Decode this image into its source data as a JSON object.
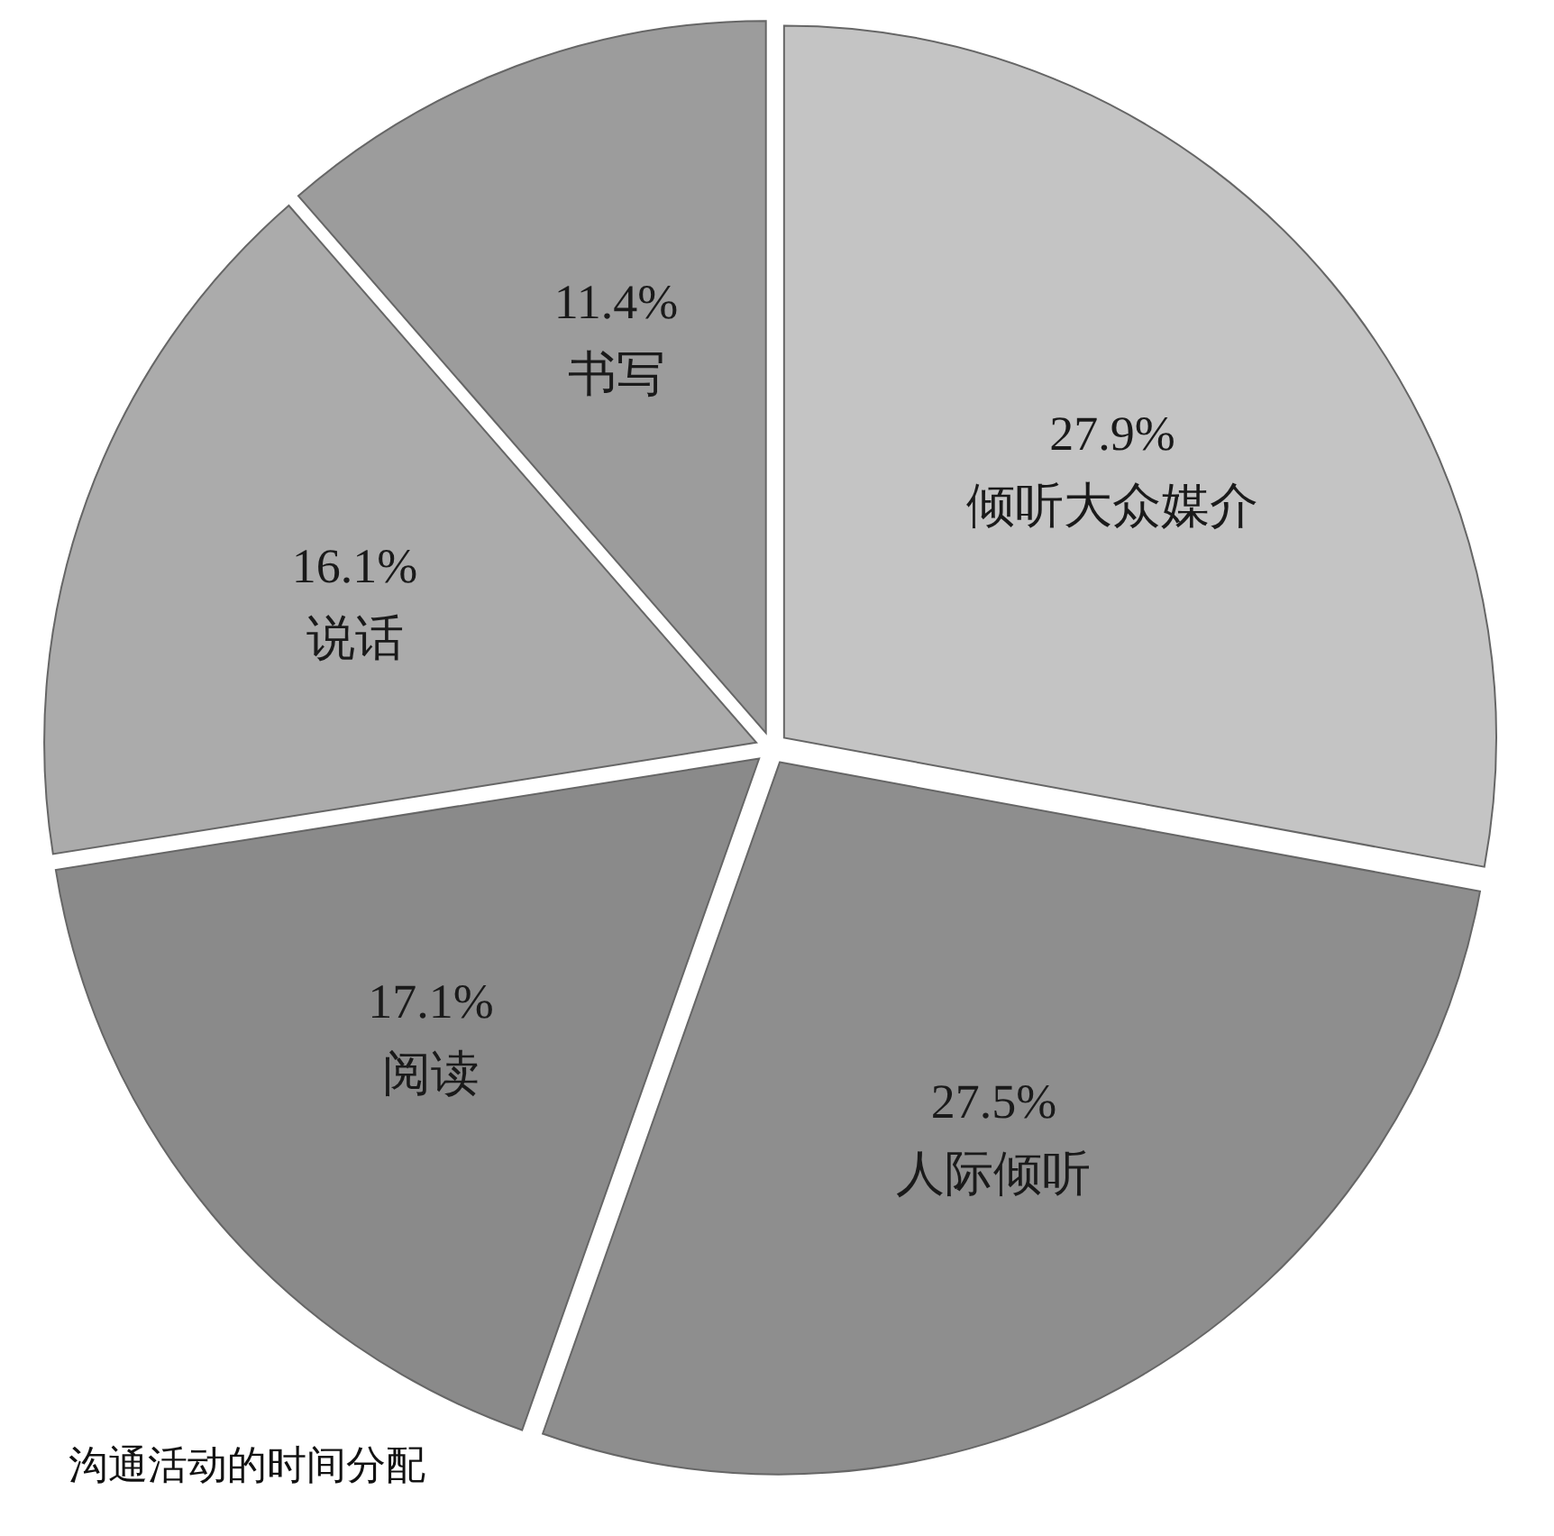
{
  "chart_data": {
    "type": "pie",
    "title": "沟通活动的时间分配",
    "categories": [
      "倾听大众媒介",
      "人际倾听",
      "阅读",
      "说话",
      "书写"
    ],
    "values": [
      27.9,
      27.5,
      17.1,
      16.1,
      11.4
    ],
    "value_labels": [
      "27.9%",
      "27.5%",
      "17.1%",
      "16.1%",
      "11.4%"
    ],
    "colors": [
      "#c4c4c4",
      "#8e8e8e",
      "#8a8a8a",
      "#ababab",
      "#9c9c9c"
    ]
  }
}
